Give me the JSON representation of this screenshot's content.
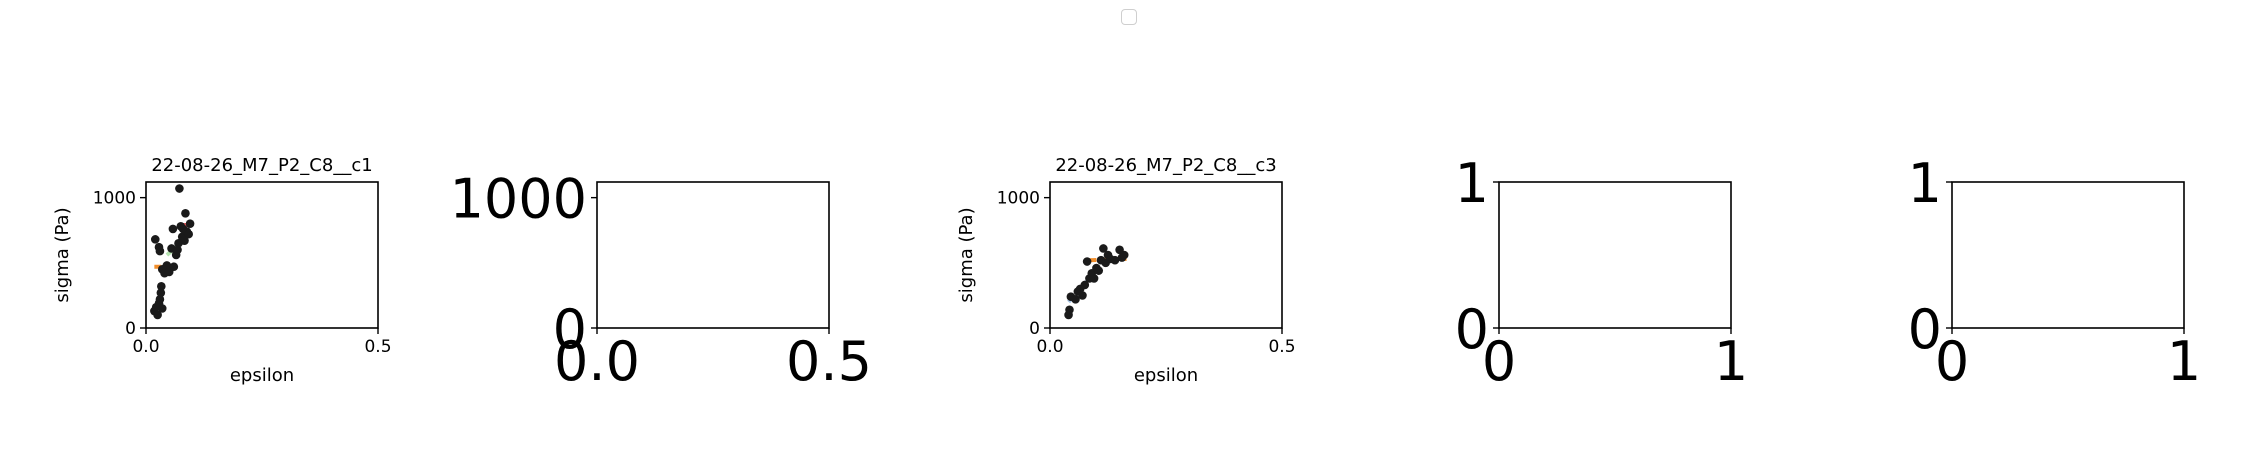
{
  "legend_checkbox": {
    "checked": false
  },
  "colors": {
    "frame": "#000000",
    "points": "#1a1a1a"
  },
  "chart_data": [
    {
      "type": "scatter",
      "title": "22-08-26_M7_P2_C8__c1",
      "xlabel": "epsilon",
      "ylabel": "sigma (Pa)",
      "xlim": [
        0,
        0.5
      ],
      "ylim": [
        0,
        1120
      ],
      "x_ticks": [
        0,
        0.5
      ],
      "x_tick_labels": [
        "0.0",
        "0.5"
      ],
      "y_ticks": [
        0,
        1000
      ],
      "y_tick_labels": [
        "0",
        "1000"
      ],
      "tick_font": "small",
      "points": [
        {
          "x": 0.018,
          "y": 130
        },
        {
          "x": 0.022,
          "y": 160
        },
        {
          "x": 0.025,
          "y": 100
        },
        {
          "x": 0.028,
          "y": 190
        },
        {
          "x": 0.03,
          "y": 220
        },
        {
          "x": 0.032,
          "y": 270
        },
        {
          "x": 0.033,
          "y": 320
        },
        {
          "x": 0.035,
          "y": 150
        },
        {
          "x": 0.02,
          "y": 680
        },
        {
          "x": 0.028,
          "y": 620
        },
        {
          "x": 0.03,
          "y": 590
        },
        {
          "x": 0.035,
          "y": 450
        },
        {
          "x": 0.04,
          "y": 420
        },
        {
          "x": 0.045,
          "y": 480
        },
        {
          "x": 0.05,
          "y": 430
        },
        {
          "x": 0.055,
          "y": 610
        },
        {
          "x": 0.058,
          "y": 760
        },
        {
          "x": 0.06,
          "y": 470
        },
        {
          "x": 0.065,
          "y": 560
        },
        {
          "x": 0.068,
          "y": 600
        },
        {
          "x": 0.07,
          "y": 650
        },
        {
          "x": 0.072,
          "y": 1070
        },
        {
          "x": 0.075,
          "y": 780
        },
        {
          "x": 0.078,
          "y": 700
        },
        {
          "x": 0.08,
          "y": 760
        },
        {
          "x": 0.083,
          "y": 670
        },
        {
          "x": 0.085,
          "y": 880
        },
        {
          "x": 0.088,
          "y": 740
        },
        {
          "x": 0.092,
          "y": 720
        },
        {
          "x": 0.095,
          "y": 800
        }
      ],
      "segments": [
        {
          "color": "#aac7e6",
          "x": [
            0.015,
            0.035
          ],
          "y": [
            130,
            200
          ]
        },
        {
          "color": "#f28e2b",
          "x": [
            0.018,
            0.05
          ],
          "y": [
            470,
            470
          ]
        },
        {
          "color": "#b5e3b0",
          "x": [
            0.045,
            0.075
          ],
          "y": [
            560,
            650
          ]
        },
        {
          "color": "#e15759",
          "x": [
            0.075,
            0.095
          ],
          "y": [
            790,
            790
          ]
        }
      ]
    },
    {
      "type": "scatter",
      "title": "",
      "xlabel": "",
      "ylabel": "",
      "xlim": [
        0,
        0.5
      ],
      "ylim": [
        0,
        1120
      ],
      "x_ticks": [
        0,
        0.5
      ],
      "x_tick_labels": [
        "0.0",
        "0.5"
      ],
      "y_ticks": [
        0,
        1000
      ],
      "y_tick_labels": [
        "0",
        "1000"
      ],
      "tick_font": "large",
      "points": [],
      "segments": []
    },
    {
      "type": "scatter",
      "title": "22-08-26_M7_P2_C8__c3",
      "xlabel": "epsilon",
      "ylabel": "sigma (Pa)",
      "xlim": [
        0,
        0.5
      ],
      "ylim": [
        0,
        1120
      ],
      "x_ticks": [
        0,
        0.5
      ],
      "x_tick_labels": [
        "0.0",
        "0.5"
      ],
      "y_ticks": [
        0,
        1000
      ],
      "y_tick_labels": [
        "0",
        "1000"
      ],
      "tick_font": "small",
      "points": [
        {
          "x": 0.04,
          "y": 100
        },
        {
          "x": 0.042,
          "y": 140
        },
        {
          "x": 0.045,
          "y": 240
        },
        {
          "x": 0.055,
          "y": 220
        },
        {
          "x": 0.06,
          "y": 280
        },
        {
          "x": 0.065,
          "y": 300
        },
        {
          "x": 0.07,
          "y": 250
        },
        {
          "x": 0.075,
          "y": 330
        },
        {
          "x": 0.08,
          "y": 510
        },
        {
          "x": 0.085,
          "y": 380
        },
        {
          "x": 0.09,
          "y": 420
        },
        {
          "x": 0.095,
          "y": 380
        },
        {
          "x": 0.1,
          "y": 460
        },
        {
          "x": 0.105,
          "y": 440
        },
        {
          "x": 0.11,
          "y": 520
        },
        {
          "x": 0.115,
          "y": 610
        },
        {
          "x": 0.12,
          "y": 500
        },
        {
          "x": 0.125,
          "y": 560
        },
        {
          "x": 0.13,
          "y": 530
        },
        {
          "x": 0.14,
          "y": 520
        },
        {
          "x": 0.15,
          "y": 600
        },
        {
          "x": 0.155,
          "y": 540
        },
        {
          "x": 0.16,
          "y": 560
        }
      ],
      "segments": [
        {
          "color": "#aac7e6",
          "x": [
            0.04,
            0.085
          ],
          "y": [
            200,
            380
          ]
        },
        {
          "color": "#f28e2b",
          "x": [
            0.085,
            0.165
          ],
          "y": [
            520,
            530
          ]
        }
      ]
    },
    {
      "type": "scatter",
      "title": "",
      "xlabel": "",
      "ylabel": "",
      "xlim": [
        0,
        1
      ],
      "ylim": [
        0,
        1
      ],
      "x_ticks": [
        0,
        1
      ],
      "x_tick_labels": [
        "0",
        "1"
      ],
      "y_ticks": [
        0,
        1
      ],
      "y_tick_labels": [
        "0",
        "1"
      ],
      "tick_font": "large",
      "points": [],
      "segments": []
    },
    {
      "type": "scatter",
      "title": "",
      "xlabel": "",
      "ylabel": "",
      "xlim": [
        0,
        1
      ],
      "ylim": [
        0,
        1
      ],
      "x_ticks": [
        0,
        1
      ],
      "x_tick_labels": [
        "0",
        "1"
      ],
      "y_ticks": [
        0,
        1
      ],
      "y_tick_labels": [
        "0",
        "1"
      ],
      "tick_font": "large",
      "points": [],
      "segments": []
    }
  ]
}
